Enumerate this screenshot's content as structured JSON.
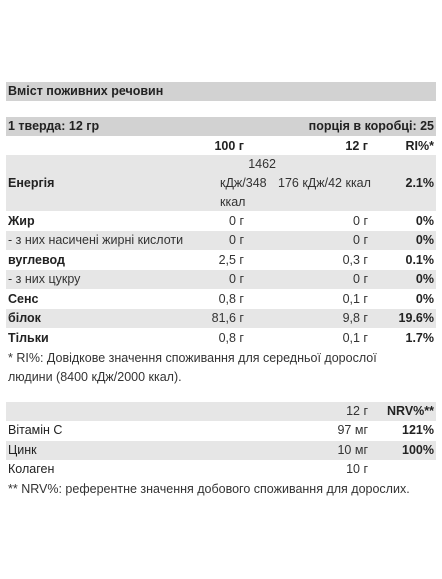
{
  "title": "Вміст поживних речовин",
  "portion": {
    "serving": "1 тверда: 12 гр",
    "per_box": "порція в коробці: 25"
  },
  "header": {
    "col100": "100 г",
    "col12": "12 г",
    "ri": "RI%*"
  },
  "energy": {
    "label": "Енергія",
    "v100_line1": "1462",
    "v100_line2": "кДж/348",
    "v100_line3": "ккал",
    "v12": "176 кДж/42 ккал",
    "ri": "2.1%"
  },
  "rows": [
    {
      "label": "Жир",
      "v100": "0 г",
      "v12": "0 г",
      "ri": "0%"
    },
    {
      "label": "- з них насичені жирні кислоти",
      "v100": "0 г",
      "v12": "0 г",
      "ri": "0%"
    },
    {
      "label": "вуглевод",
      "v100": "2,5 г",
      "v12": "0,3 г",
      "ri": "0.1%"
    },
    {
      "label": "- з них цукру",
      "v100": "0 г",
      "v12": "0 г",
      "ri": "0%"
    },
    {
      "label": "Сенс",
      "v100": "0,8 г",
      "v12": "0,1 г",
      "ri": "0%"
    },
    {
      "label": "білок",
      "v100": "81,6 г",
      "v12": "9,8 г",
      "ri": "19.6%"
    },
    {
      "label": "Тільки",
      "v100": "0,8 г",
      "v12": "0,1 г",
      "ri": "1.7%"
    }
  ],
  "ri_note_line1": "* RI%: Довідкове значення споживання для середньої дорослої",
  "ri_note_line2": "людини (8400 кДж/2000 ккал).",
  "vitamins": {
    "header": {
      "amount": "12 г",
      "nrv": "NRV%**"
    },
    "rows": [
      {
        "label": "Вітамін С",
        "amount": "97 мг",
        "nrv": "121%"
      },
      {
        "label": "Цинк",
        "amount": "10 мг",
        "nrv": "100%"
      },
      {
        "label": "Колаген",
        "amount": "10 г",
        "nrv": ""
      }
    ],
    "note": "** NRV%: референтне значення добового споживання для дорослих."
  }
}
